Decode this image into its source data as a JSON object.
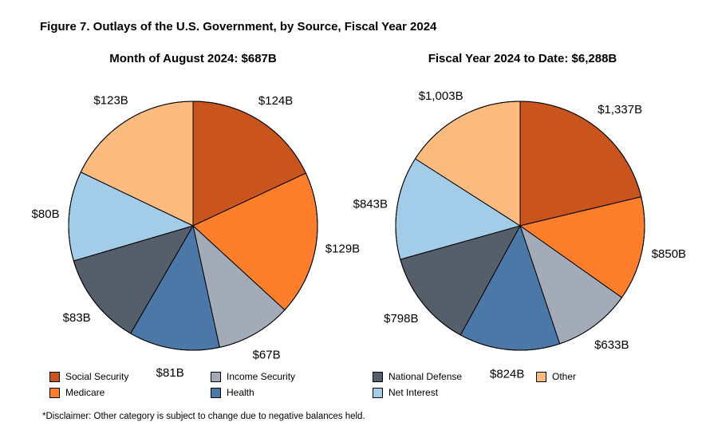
{
  "figure_title": "Figure 7. Outlays of the U.S. Government, by Source, Fiscal Year 2024",
  "disclaimer": "*Disclaimer: Other category is subject to change due to negative balances held.",
  "colors": {
    "Social Security": "#C9541E",
    "Medicare": "#FD7F2C",
    "Income Security": "#A2ABB7",
    "Health": "#4C78A8",
    "National Defense": "#555E6B",
    "Net Interest": "#A3CCE8",
    "Other": "#FEBB80"
  },
  "legend": [
    {
      "label": "Social Security"
    },
    {
      "label": "Medicare"
    },
    {
      "label": "Income Security"
    },
    {
      "label": "Health"
    },
    {
      "label": "National Defense"
    },
    {
      "label": "Net Interest"
    },
    {
      "label": "Other"
    }
  ],
  "chart_data": [
    {
      "type": "pie",
      "title": "Month of August 2024: $687B",
      "unit": "billions of dollars",
      "slices": [
        {
          "name": "Social Security",
          "value": 124,
          "label": "$124B"
        },
        {
          "name": "Medicare",
          "value": 129,
          "label": "$129B"
        },
        {
          "name": "Income Security",
          "value": 67,
          "label": "$67B"
        },
        {
          "name": "Health",
          "value": 81,
          "label": "$81B"
        },
        {
          "name": "National Defense",
          "value": 83,
          "label": "$83B"
        },
        {
          "name": "Net Interest",
          "value": 80,
          "label": "$80B"
        },
        {
          "name": "Other",
          "value": 123,
          "label": "$123B"
        }
      ]
    },
    {
      "type": "pie",
      "title": "Fiscal Year 2024 to Date: $6,288B",
      "unit": "billions of dollars",
      "slices": [
        {
          "name": "Social Security",
          "value": 1337,
          "label": "$1,337B"
        },
        {
          "name": "Medicare",
          "value": 850,
          "label": "$850B"
        },
        {
          "name": "Income Security",
          "value": 633,
          "label": "$633B"
        },
        {
          "name": "Health",
          "value": 824,
          "label": "$824B"
        },
        {
          "name": "National Defense",
          "value": 798,
          "label": "$798B"
        },
        {
          "name": "Net Interest",
          "value": 843,
          "label": "$843B"
        },
        {
          "name": "Other",
          "value": 1003,
          "label": "$1,003B"
        }
      ]
    }
  ]
}
